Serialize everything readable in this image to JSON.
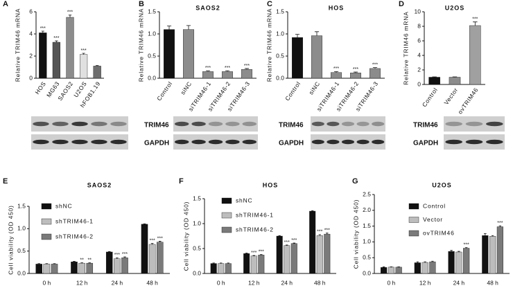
{
  "chart_data": [
    {
      "type": "bar",
      "panel": "A",
      "ylabel": "Relative TRIM46 mRNA",
      "categories": [
        "HOS",
        "MG63",
        "SAOS2",
        "U2OS",
        "hFOB1.19"
      ],
      "values": [
        4.1,
        3.25,
        5.5,
        2.15,
        1.1
      ],
      "errors": [
        0.15,
        0.12,
        0.2,
        0.1,
        0.05
      ],
      "colors": [
        "#111111",
        "#555555",
        "#8c8c8c",
        "#e0e0e0",
        "#6e6e6e"
      ],
      "annotations": [
        "***",
        "***",
        "***",
        "***",
        null
      ],
      "ylim": [
        0,
        6
      ],
      "yticks": [
        0,
        2,
        4,
        6
      ]
    },
    {
      "type": "bar",
      "panel": "B",
      "title": "SAOS2",
      "ylabel": "Relative TRIM46 mRNA",
      "categories": [
        "Control",
        "siNC",
        "siTRIM46-1",
        "siTRIM46-2",
        "siTRIM46-3"
      ],
      "values": [
        1.1,
        1.1,
        0.15,
        0.15,
        0.2
      ],
      "errors": [
        0.08,
        0.09,
        0.02,
        0.02,
        0.02
      ],
      "colors": [
        "#111111",
        "#8c8c8c",
        "#8c8c8c",
        "#8c8c8c",
        "#8c8c8c"
      ],
      "annotations": [
        null,
        null,
        "***",
        "***",
        "***"
      ],
      "ylim": [
        0,
        1.5
      ],
      "yticks": [
        {
          "value": 0,
          "label": "0.0"
        },
        0.5,
        {
          "value": 1,
          "label": "1.0"
        },
        1.5
      ],
      "blot_labels": [
        "TRIM46",
        "GAPDH"
      ]
    },
    {
      "type": "bar",
      "panel": "C",
      "title": "HOS",
      "ylabel": "Relative TRIM46 mRNA",
      "categories": [
        "Control",
        "siNC",
        "siTRIM46-1",
        "siTRIM46-2",
        "siTRIM46-3"
      ],
      "values": [
        0.92,
        0.96,
        0.13,
        0.12,
        0.22
      ],
      "errors": [
        0.07,
        0.09,
        0.02,
        0.02,
        0.02
      ],
      "colors": [
        "#111111",
        "#8c8c8c",
        "#8c8c8c",
        "#8c8c8c",
        "#8c8c8c"
      ],
      "annotations": [
        null,
        null,
        "***",
        "***",
        "***"
      ],
      "ylim": [
        0,
        1.5
      ],
      "yticks": [
        {
          "value": 0,
          "label": "0.0"
        },
        0.5,
        {
          "value": 1,
          "label": "1.0"
        },
        1.5
      ],
      "blot_labels": [
        "TRIM46",
        "GAPDH"
      ]
    },
    {
      "type": "bar",
      "panel": "D",
      "title": "U2OS",
      "ylabel": "Relative TRIM46 mRNA",
      "categories": [
        "Control",
        "Vector",
        "ovTRIM46"
      ],
      "values": [
        1.0,
        1.0,
        8.1
      ],
      "errors": [
        0.05,
        0.05,
        0.5
      ],
      "colors": [
        "#111111",
        "#8c8c8c",
        "#a0a0a0"
      ],
      "annotations": [
        null,
        null,
        "***"
      ],
      "ylim": [
        0,
        10
      ],
      "yticks": [
        0,
        2,
        4,
        6,
        8,
        10
      ],
      "blot_labels": [
        "TRIM46",
        "GAPDH"
      ]
    },
    {
      "type": "grouped-bar",
      "panel": "E",
      "title": "SAOS2",
      "ylabel": "Cell viability (OD 450)",
      "categories": [
        "0 h",
        "12 h",
        "24 h",
        "48 h"
      ],
      "series": [
        {
          "name": "shNC",
          "color": "#111111",
          "values": [
            0.21,
            0.26,
            0.48,
            1.1
          ],
          "errors": [
            0.01,
            0.01,
            0.01,
            0.01
          ],
          "annotations": [
            null,
            null,
            null,
            null
          ]
        },
        {
          "name": "shTRIM46-1",
          "color": "#bdbdbd",
          "values": [
            0.21,
            0.23,
            0.33,
            0.65
          ],
          "errors": [
            0.01,
            0.01,
            0.02,
            0.02
          ],
          "annotations": [
            null,
            "**",
            "***",
            "***"
          ]
        },
        {
          "name": "shTRIM46-2",
          "color": "#7a7a7a",
          "values": [
            0.21,
            0.23,
            0.35,
            0.7
          ],
          "errors": [
            0.01,
            0.01,
            0.02,
            0.02
          ],
          "annotations": [
            null,
            "**",
            "***",
            "***"
          ]
        }
      ],
      "ylim": [
        0,
        1.5
      ],
      "yticks": [
        {
          "value": 0,
          "label": "0.0"
        },
        0.5,
        {
          "value": 1,
          "label": "1.0"
        },
        1.5
      ]
    },
    {
      "type": "grouped-bar",
      "panel": "F",
      "title": "HOS",
      "ylabel": "Cell viability (OD 450)",
      "categories": [
        "0 h",
        "12 h",
        "24 h",
        "48 h"
      ],
      "series": [
        {
          "name": "shNC",
          "color": "#111111",
          "values": [
            0.2,
            0.4,
            0.75,
            1.25
          ],
          "errors": [
            0.01,
            0.01,
            0.01,
            0.01
          ],
          "annotations": [
            null,
            null,
            null,
            null
          ]
        },
        {
          "name": "shTRIM46-1",
          "color": "#bdbdbd",
          "values": [
            0.2,
            0.35,
            0.56,
            0.76
          ],
          "errors": [
            0.01,
            0.01,
            0.01,
            0.02
          ],
          "annotations": [
            null,
            "***",
            "***",
            "***"
          ]
        },
        {
          "name": "shTRIM46-2",
          "color": "#7a7a7a",
          "values": [
            0.2,
            0.37,
            0.6,
            0.79
          ],
          "errors": [
            0.01,
            0.01,
            0.01,
            0.02
          ],
          "annotations": [
            null,
            "***",
            "***",
            "***"
          ]
        }
      ],
      "ylim": [
        0,
        1.5
      ],
      "yticks": [
        {
          "value": 0,
          "label": "0.0"
        },
        0.5,
        {
          "value": 1,
          "label": "1.0"
        },
        1.5
      ]
    },
    {
      "type": "grouped-bar",
      "panel": "G",
      "title": "U2OS",
      "ylabel": "Cell viability (OD 450)",
      "categories": [
        "0 h",
        "12 h",
        "24 h",
        "48 h"
      ],
      "series": [
        {
          "name": "Control",
          "color": "#111111",
          "values": [
            0.19,
            0.34,
            0.7,
            1.2
          ],
          "errors": [
            0.02,
            0.03,
            0.03,
            0.06
          ],
          "annotations": [
            null,
            null,
            null,
            null
          ]
        },
        {
          "name": "Vector",
          "color": "#bdbdbd",
          "values": [
            0.2,
            0.35,
            0.68,
            1.18
          ],
          "errors": [
            0.01,
            0.02,
            0.02,
            0.02
          ],
          "annotations": [
            null,
            null,
            null,
            null
          ]
        },
        {
          "name": "ovTRIM46",
          "color": "#7a7a7a",
          "values": [
            0.2,
            0.37,
            0.8,
            1.48
          ],
          "errors": [
            0.01,
            0.02,
            0.02,
            0.03
          ],
          "annotations": [
            null,
            null,
            "***",
            "***"
          ]
        }
      ],
      "ylim": [
        0,
        2.5
      ],
      "yticks": [
        {
          "value": 0,
          "label": "0.0"
        },
        0.5,
        {
          "value": 1,
          "label": "1.0"
        },
        1.5,
        {
          "value": 2,
          "label": "2.0"
        },
        2.5
      ]
    }
  ]
}
